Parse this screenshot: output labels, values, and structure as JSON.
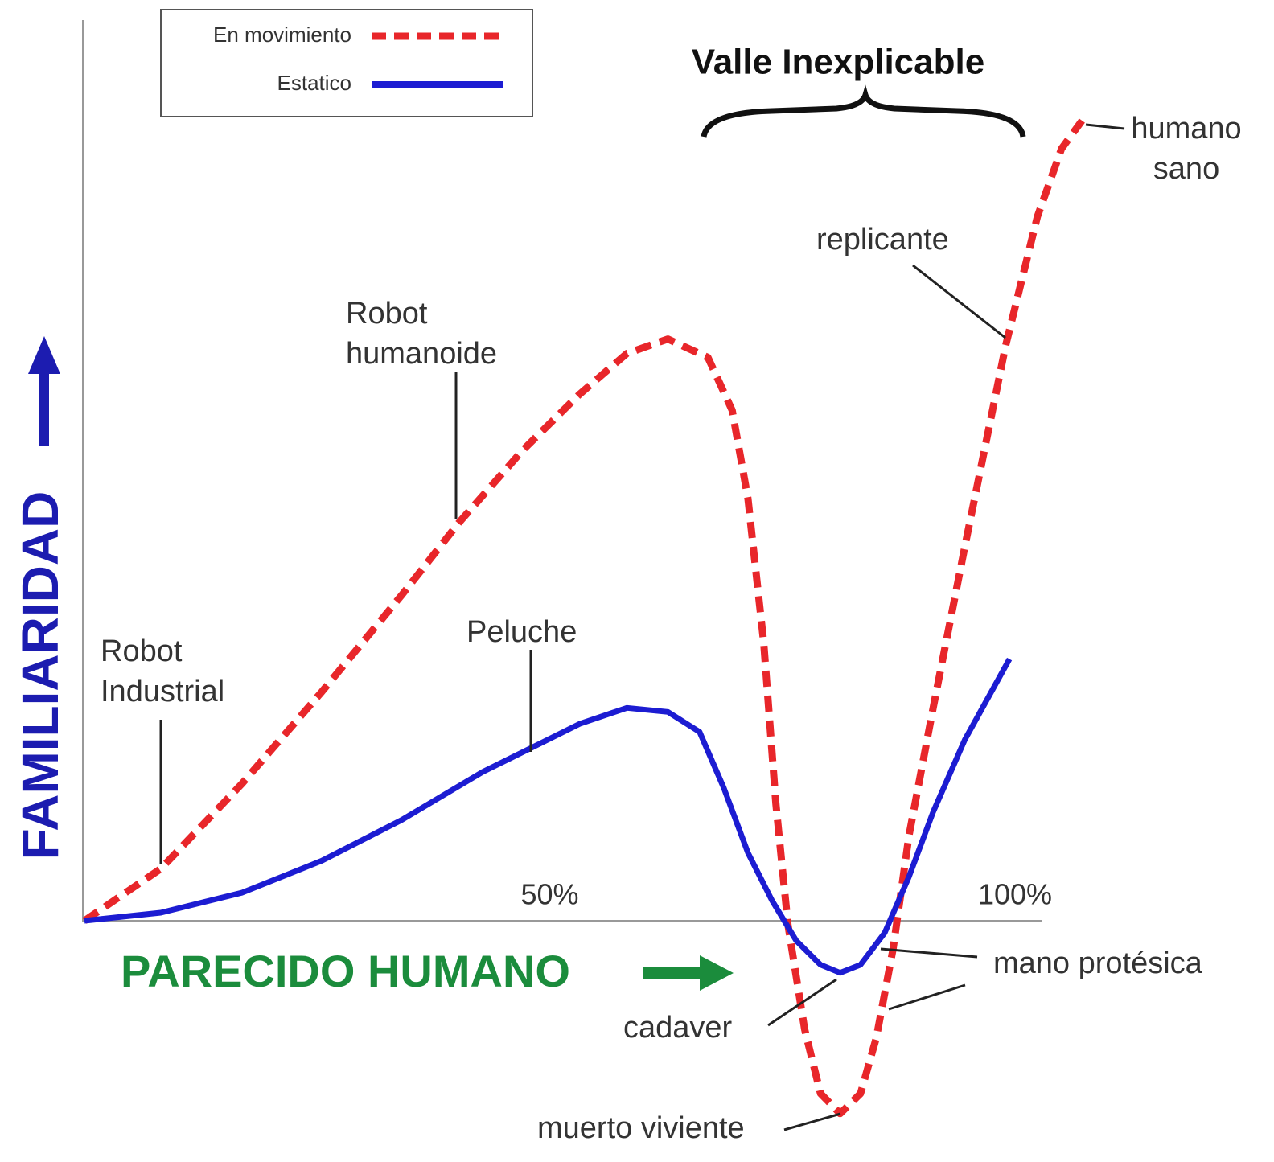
{
  "chart_data": {
    "type": "line",
    "title": "Valle Inexplicable",
    "x_label": "PARECIDO HUMANO",
    "y_label": "FAMILIARIDAD",
    "xlim": [
      0,
      108
    ],
    "ylim": [
      -30,
      105
    ],
    "xticks": [
      {
        "value": 50,
        "label": "50%"
      },
      {
        "value": 100,
        "label": "100%"
      }
    ],
    "series": [
      {
        "name": "En movimiento",
        "color": "#e8262a",
        "style": "dashed",
        "x": [
          0,
          8.2,
          16.9,
          25.5,
          34.1,
          40.2,
          47.1,
          53.2,
          58.3,
          62.7,
          67.0,
          69.6,
          71.3,
          73.0,
          74.3,
          75.6,
          77.4,
          79.1,
          81.2,
          83.4,
          85.1,
          86.9,
          88.6,
          91.2,
          94.6,
          99.0,
          102.4,
          105.0,
          107.2
        ],
        "values": [
          0,
          6.5,
          17.1,
          28.6,
          40.7,
          49.7,
          58.8,
          65.8,
          70.9,
          72.7,
          70.4,
          63.8,
          52.8,
          34.7,
          14.6,
          -0.5,
          -13.6,
          -21.6,
          -24.1,
          -21.6,
          -14.6,
          -3.5,
          10.6,
          26.6,
          46.7,
          71.9,
          88.0,
          96.5,
          100.0
        ]
      },
      {
        "name": "Estatico",
        "color": "#1c1cd2",
        "style": "solid",
        "x": [
          0,
          8.2,
          16.9,
          25.5,
          34.1,
          42.8,
          48.0,
          53.2,
          58.3,
          62.7,
          66.1,
          68.7,
          71.3,
          73.9,
          76.5,
          79.1,
          81.2,
          83.4,
          86.0,
          88.6,
          91.2,
          94.6,
          99.4
        ],
        "values": [
          0,
          1.0,
          3.5,
          7.5,
          12.6,
          18.6,
          21.6,
          24.6,
          26.6,
          26.1,
          23.6,
          16.6,
          8.5,
          2.5,
          -2.5,
          -5.5,
          -6.5,
          -5.5,
          -1.5,
          5.5,
          13.6,
          22.6,
          32.7
        ]
      }
    ],
    "annotations": [
      {
        "lines": [
          "Robot",
          "Industrial"
        ]
      },
      {
        "lines": [
          "Robot",
          "humanoide"
        ]
      },
      {
        "lines": [
          "Peluche"
        ]
      },
      {
        "lines": [
          "replicante"
        ]
      },
      {
        "lines": [
          "humano",
          "sano"
        ]
      },
      {
        "lines": [
          "mano protésica"
        ]
      },
      {
        "lines": [
          "cadaver"
        ]
      },
      {
        "lines": [
          "muerto viviente"
        ]
      }
    ]
  }
}
